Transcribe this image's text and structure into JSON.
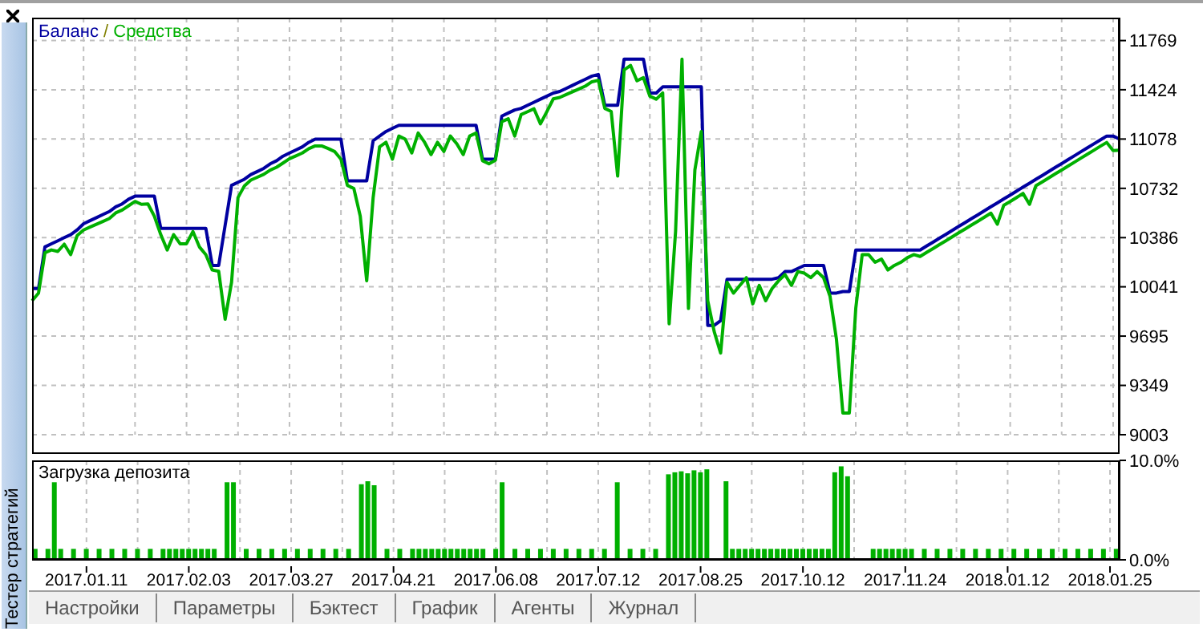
{
  "chart_data": [
    {
      "type": "line",
      "legend": "top left",
      "annotations": [
        "/"
      ],
      "grid": true,
      "tick_labels": "y",
      "ylim": [
        9003,
        11930
      ],
      "yticks": [
        9003,
        9349,
        9695,
        10041,
        10386,
        10732,
        11078,
        11424,
        11769
      ],
      "categories": [
        null,
        null,
        null,
        null,
        null,
        null,
        null,
        null,
        "2017.01.11",
        null,
        null,
        null,
        null,
        null,
        null,
        null,
        null,
        null,
        null,
        null,
        null,
        null,
        null,
        null,
        "2017.02.03",
        null,
        null,
        null,
        null,
        null,
        null,
        null,
        null,
        null,
        null,
        null,
        null,
        null,
        null,
        null,
        "2017.03.27",
        null,
        null,
        null,
        null,
        null,
        null,
        null,
        null,
        null,
        null,
        null,
        null,
        null,
        null,
        null,
        "2017.04.21",
        null,
        null,
        null,
        null,
        null,
        null,
        null,
        null,
        null,
        null,
        null,
        null,
        null,
        null,
        null,
        "2017.06.08",
        null,
        null,
        null,
        null,
        null,
        null,
        null,
        null,
        null,
        null,
        null,
        null,
        null,
        null,
        null,
        "2017.07.12",
        null,
        null,
        null,
        null,
        null,
        null,
        null,
        null,
        null,
        null,
        null,
        null,
        null,
        null,
        null,
        "2017.08.25",
        null,
        null,
        null,
        null,
        null,
        null,
        null,
        null,
        null,
        null,
        null,
        null,
        null,
        null,
        null,
        "2017.10.12",
        null,
        null,
        null,
        null,
        null,
        null,
        null,
        null,
        null,
        null,
        null,
        null,
        null,
        null,
        null,
        "2017.11.24",
        null,
        null,
        null,
        null,
        null,
        null,
        null,
        null,
        null,
        null,
        null,
        null,
        null,
        null,
        null,
        "2018.01.12",
        null,
        null,
        null,
        null,
        null,
        null,
        null,
        null,
        null,
        null,
        null,
        null,
        null,
        null,
        null,
        "2018.01.25",
        null
      ],
      "series": [
        {
          "name": "Баланс",
          "color": "#0000a0",
          "values": [
            10029,
            10029,
            10321,
            10343,
            10364,
            10386,
            10407,
            10440,
            10483,
            10505,
            10526,
            10548,
            10569,
            10602,
            10623,
            10656,
            10677,
            10677,
            10677,
            10677,
            10451,
            10451,
            10451,
            10451,
            10451,
            10451,
            10451,
            10451,
            10191,
            10191,
            10472,
            10753,
            10775,
            10796,
            10829,
            10850,
            10872,
            10904,
            10926,
            10958,
            10980,
            11001,
            11023,
            11055,
            11077,
            11077,
            11077,
            11077,
            11077,
            10785,
            10785,
            10785,
            10785,
            11066,
            11099,
            11131,
            11153,
            11174,
            11174,
            11174,
            11174,
            11174,
            11174,
            11174,
            11174,
            11174,
            11174,
            11174,
            11174,
            11174,
            10937,
            10937,
            10937,
            11239,
            11261,
            11282,
            11293,
            11315,
            11336,
            11358,
            11379,
            11401,
            11412,
            11433,
            11455,
            11477,
            11498,
            11520,
            11531,
            11315,
            11315,
            11315,
            11639,
            11639,
            11639,
            11639,
            11401,
            11401,
            11444,
            11444,
            11444,
            11444,
            11444,
            11444,
            11444,
            9770,
            9770,
            9803,
            10094,
            10094,
            10094,
            10094,
            10094,
            10094,
            10094,
            10094,
            10105,
            10148,
            10148,
            10170,
            10191,
            10191,
            10191,
            10191,
            9997,
            9997,
            10008,
            10008,
            10299,
            10299,
            10299,
            10299,
            10299,
            10299,
            10299,
            10299,
            10299,
            10299,
            10299,
            10327,
            10354,
            10382,
            10409,
            10437,
            10465,
            10492,
            10520,
            10547,
            10575,
            10603,
            10630,
            10658,
            10685,
            10713,
            10741,
            10768,
            10796,
            10823,
            10851,
            10879,
            10906,
            10934,
            10961,
            10989,
            11017,
            11044,
            11072,
            11099,
            11099,
            11077
          ]
        },
        {
          "name": "Средства",
          "color": "#00b000",
          "values": [
            9943,
            9997,
            10280,
            10300,
            10289,
            10340,
            10267,
            10400,
            10440,
            10460,
            10480,
            10500,
            10520,
            10560,
            10580,
            10610,
            10640,
            10620,
            10623,
            10537,
            10407,
            10299,
            10407,
            10343,
            10343,
            10429,
            10321,
            10267,
            10159,
            10150,
            9813,
            10073,
            10667,
            10750,
            10790,
            10810,
            10830,
            10860,
            10880,
            10910,
            10940,
            10960,
            10980,
            11010,
            11030,
            11030,
            11012,
            10991,
            10937,
            10753,
            10731,
            10537,
            10083,
            10667,
            11023,
            11055,
            10937,
            11099,
            11077,
            10980,
            11120,
            11055,
            10969,
            11055,
            10991,
            11099,
            11045,
            10969,
            11099,
            11120,
            10926,
            10904,
            10930,
            11200,
            11220,
            11099,
            11250,
            11270,
            11290,
            11185,
            11271,
            11360,
            11370,
            11390,
            11410,
            11430,
            11450,
            11480,
            11490,
            11293,
            11271,
            10818,
            11563,
            11595,
            11487,
            11509,
            11379,
            11358,
            11401,
            9781,
            10429,
            11639,
            9889,
            10861,
            11131,
            9943,
            9727,
            9576,
            10073,
            9997,
            10051,
            10105,
            9921,
            10051,
            9943,
            10029,
            10083,
            10127,
            10051,
            10148,
            10137,
            10105,
            10148,
            10105,
            9975,
            9673,
            9155,
            9155,
            9889,
            10267,
            10267,
            10213,
            10235,
            10159,
            10191,
            10213,
            10245,
            10267,
            10254,
            10282,
            10309,
            10337,
            10364,
            10392,
            10420,
            10447,
            10475,
            10502,
            10530,
            10558,
            10480,
            10613,
            10640,
            10668,
            10696,
            10620,
            10751,
            10778,
            10806,
            10834,
            10861,
            10889,
            10916,
            10944,
            10972,
            10999,
            11027,
            11054,
            10997,
            11000
          ]
        }
      ]
    },
    {
      "type": "bar",
      "title": "Загрузка депозита",
      "grid": "x",
      "color": "#00b000",
      "ylim": [
        0,
        10
      ],
      "yticks": [
        {
          "value": 0,
          "label": "0.0%"
        },
        {
          "value": 10,
          "label": "10.0%"
        }
      ],
      "annotations": [
        "Тестер стратегий",
        "Настройки",
        "Параметры",
        "Бэктест",
        "График",
        "Агенты",
        "Журнал"
      ],
      "categories": [
        null,
        null,
        null,
        null,
        null,
        null,
        null,
        null,
        "2017.01.11",
        null,
        null,
        null,
        null,
        null,
        null,
        null,
        null,
        null,
        null,
        null,
        null,
        null,
        null,
        null,
        "2017.02.03",
        null,
        null,
        null,
        null,
        null,
        null,
        null,
        null,
        null,
        null,
        null,
        null,
        null,
        null,
        null,
        "2017.03.27",
        null,
        null,
        null,
        null,
        null,
        null,
        null,
        null,
        null,
        null,
        null,
        null,
        null,
        null,
        null,
        "2017.04.21",
        null,
        null,
        null,
        null,
        null,
        null,
        null,
        null,
        null,
        null,
        null,
        null,
        null,
        null,
        null,
        "2017.06.08",
        null,
        null,
        null,
        null,
        null,
        null,
        null,
        null,
        null,
        null,
        null,
        null,
        null,
        null,
        null,
        "2017.07.12",
        null,
        null,
        null,
        null,
        null,
        null,
        null,
        null,
        null,
        null,
        null,
        null,
        null,
        null,
        null,
        "2017.08.25",
        null,
        null,
        null,
        null,
        null,
        null,
        null,
        null,
        null,
        null,
        null,
        null,
        null,
        null,
        null,
        "2017.10.12",
        null,
        null,
        null,
        null,
        null,
        null,
        null,
        null,
        null,
        null,
        null,
        null,
        null,
        null,
        null,
        "2017.11.24",
        null,
        null,
        null,
        null,
        null,
        null,
        null,
        null,
        null,
        null,
        null,
        null,
        null,
        null,
        null,
        "2018.01.12",
        null,
        null,
        null,
        null,
        null,
        null,
        null,
        null,
        null,
        null,
        null,
        null,
        null,
        null,
        null,
        "2018.01.25",
        null
      ],
      "values": [
        1.1,
        null,
        1.1,
        7.8,
        1.1,
        null,
        1.1,
        null,
        1.1,
        null,
        1.1,
        null,
        1.1,
        null,
        1.1,
        null,
        1.1,
        null,
        1.1,
        null,
        1.1,
        1.1,
        1.1,
        1.1,
        1.1,
        1.1,
        1.1,
        1.1,
        1.1,
        null,
        7.8,
        7.8,
        null,
        1.1,
        null,
        1.1,
        null,
        1.1,
        null,
        1.1,
        null,
        1.1,
        null,
        1.1,
        null,
        1.1,
        null,
        1.1,
        null,
        1.1,
        null,
        7.6,
        7.9,
        7.5,
        null,
        1.1,
        null,
        1.1,
        null,
        1.1,
        1.1,
        1.1,
        1.1,
        1.1,
        1.1,
        1.1,
        1.1,
        1.1,
        1.1,
        1.1,
        1.1,
        null,
        1.1,
        7.8,
        null,
        1.1,
        null,
        1.1,
        null,
        1.1,
        null,
        1.1,
        null,
        1.1,
        null,
        1.1,
        null,
        1.1,
        null,
        1.1,
        null,
        7.8,
        null,
        1.1,
        null,
        1.1,
        null,
        1.1,
        null,
        8.6,
        8.8,
        8.9,
        8.7,
        9.0,
        8.8,
        9.1,
        null,
        null,
        7.9,
        1.1,
        1.1,
        1.1,
        1.1,
        1.1,
        1.1,
        1.1,
        1.1,
        1.1,
        1.1,
        1.1,
        1.1,
        1.1,
        1.1,
        1.1,
        1.1,
        8.8,
        9.4,
        8.4,
        null,
        null,
        null,
        1.1,
        1.1,
        1.1,
        1.1,
        1.1,
        1.1,
        1.1,
        null,
        1.1,
        null,
        1.1,
        null,
        1.1,
        null,
        1.1,
        null,
        1.1,
        null,
        1.1,
        null,
        1.1,
        null,
        1.1,
        null,
        1.1,
        null,
        1.1,
        null,
        1.1,
        null,
        1.1,
        null,
        1.1,
        null,
        1.1,
        null,
        1.1,
        null,
        1.1
      ]
    }
  ]
}
